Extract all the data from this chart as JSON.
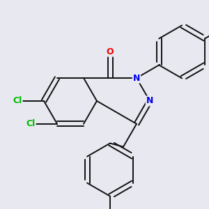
{
  "background_color": "#e8e8f0",
  "bond_color": "#111111",
  "atom_colors": {
    "Cl": "#00bb00",
    "N": "#0000ee",
    "O": "#ee0000",
    "F": "#cc00aa"
  },
  "figsize": [
    3.0,
    3.0
  ],
  "dpi": 100
}
